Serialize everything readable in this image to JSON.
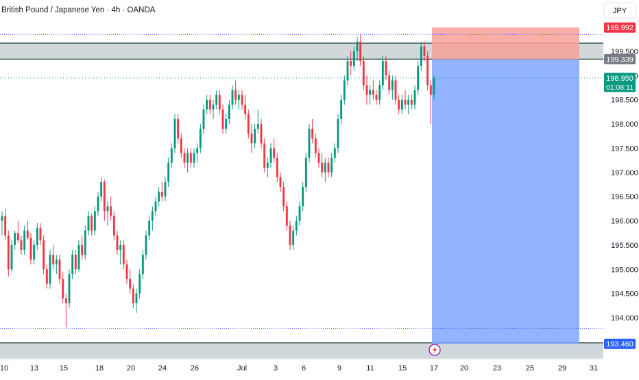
{
  "header": {
    "symbol_title": "British Pound / Japanese Yen · 4h · OANDA",
    "currency": "JPY"
  },
  "colors": {
    "up": "#089981",
    "down": "#f23645",
    "zone_fill": "#b2bec3",
    "zone_line": "#1b3d2f",
    "target_fill": "#7fa6ff",
    "stop_fill": "#f8a199",
    "dotted_line": "#3d5afe",
    "last_price_line": "#089981",
    "label_red": "#f23645",
    "label_gray": "#787b86",
    "label_green": "#089981",
    "label_blue": "#2962ff",
    "event_icon": "#9c27b0"
  },
  "chart_data": {
    "type": "candlestick",
    "symbol": "GBPJPY",
    "timeframe": "4h",
    "source": "OANDA",
    "ylim": [
      193.4,
      200.4
    ],
    "y_ticks": [
      194.0,
      194.5,
      195.0,
      195.5,
      196.0,
      196.5,
      197.0,
      197.5,
      198.0,
      198.5,
      199.0,
      199.5
    ],
    "x_tick_labels": [
      "10",
      "13",
      "15",
      "18",
      "20",
      "24",
      "26",
      "Jul",
      "3",
      "6",
      "9",
      "11",
      "15",
      "17",
      "20",
      "23",
      "25",
      "29",
      "31"
    ],
    "price_labels": [
      {
        "value": 199.992,
        "label": "199.992",
        "role": "stop-loss"
      },
      {
        "value": 199.339,
        "label": "199.339",
        "role": "entry"
      },
      {
        "value": 198.95,
        "label": "198.950",
        "role": "last-price",
        "countdown": "01:08:11"
      },
      {
        "value": 193.46,
        "label": "193.460",
        "role": "target"
      }
    ],
    "resistance_zone": [
      199.339,
      199.67
    ],
    "support_zone": [
      193.2,
      193.48
    ],
    "dotted_levels": [
      199.85,
      193.78
    ],
    "short_position": {
      "entry": 199.339,
      "stop": 199.992,
      "target": 193.46,
      "start_date": "17",
      "end_date": "31"
    },
    "candles": [
      [
        196.0,
        196.2,
        195.7,
        196.1
      ],
      [
        196.1,
        196.25,
        195.6,
        195.7
      ],
      [
        195.7,
        195.8,
        194.85,
        195.0
      ],
      [
        195.0,
        195.6,
        194.95,
        195.5
      ],
      [
        195.5,
        195.8,
        195.4,
        195.75
      ],
      [
        195.75,
        196.0,
        195.55,
        195.6
      ],
      [
        195.6,
        195.7,
        195.3,
        195.4
      ],
      [
        195.4,
        195.9,
        195.3,
        195.8
      ],
      [
        195.8,
        196.0,
        195.6,
        195.65
      ],
      [
        195.65,
        195.75,
        195.1,
        195.2
      ],
      [
        195.2,
        195.6,
        195.1,
        195.5
      ],
      [
        195.5,
        195.95,
        195.4,
        195.85
      ],
      [
        195.85,
        195.95,
        195.5,
        195.6
      ],
      [
        195.6,
        195.7,
        194.9,
        195.0
      ],
      [
        195.0,
        195.1,
        194.6,
        194.7
      ],
      [
        194.7,
        195.4,
        194.6,
        195.3
      ],
      [
        195.3,
        195.5,
        195.0,
        195.1
      ],
      [
        195.1,
        195.3,
        194.9,
        195.2
      ],
      [
        195.2,
        195.3,
        194.7,
        194.8
      ],
      [
        194.8,
        194.95,
        194.3,
        194.4
      ],
      [
        194.4,
        194.5,
        193.8,
        194.3
      ],
      [
        194.3,
        195.0,
        194.2,
        194.9
      ],
      [
        194.9,
        195.4,
        194.8,
        195.3
      ],
      [
        195.3,
        195.4,
        194.9,
        195.0
      ],
      [
        195.0,
        195.6,
        194.95,
        195.5
      ],
      [
        195.5,
        195.7,
        195.2,
        195.3
      ],
      [
        195.3,
        195.9,
        195.2,
        195.8
      ],
      [
        195.8,
        196.2,
        195.7,
        196.1
      ],
      [
        196.1,
        196.15,
        195.7,
        195.8
      ],
      [
        195.8,
        196.3,
        195.7,
        196.2
      ],
      [
        196.2,
        196.6,
        196.1,
        196.5
      ],
      [
        196.5,
        196.9,
        196.4,
        196.8
      ],
      [
        196.8,
        196.85,
        196.0,
        196.2
      ],
      [
        196.2,
        196.4,
        195.9,
        196.3
      ],
      [
        196.3,
        196.5,
        196.0,
        196.1
      ],
      [
        196.1,
        196.2,
        195.6,
        195.7
      ],
      [
        195.7,
        195.8,
        195.3,
        195.4
      ],
      [
        195.4,
        195.6,
        195.1,
        195.5
      ],
      [
        195.5,
        195.6,
        195.0,
        195.1
      ],
      [
        195.1,
        195.2,
        194.7,
        194.8
      ],
      [
        194.8,
        195.0,
        194.5,
        194.6
      ],
      [
        194.6,
        194.7,
        194.2,
        194.3
      ],
      [
        194.3,
        194.6,
        194.1,
        194.5
      ],
      [
        194.5,
        195.0,
        194.4,
        194.9
      ],
      [
        194.9,
        195.4,
        194.8,
        195.3
      ],
      [
        195.3,
        195.8,
        195.2,
        195.7
      ],
      [
        195.7,
        196.1,
        195.6,
        196.0
      ],
      [
        196.0,
        196.3,
        195.8,
        196.2
      ],
      [
        196.2,
        196.5,
        196.1,
        196.4
      ],
      [
        196.4,
        196.7,
        196.3,
        196.6
      ],
      [
        196.6,
        196.8,
        196.4,
        196.5
      ],
      [
        196.5,
        196.9,
        196.4,
        196.8
      ],
      [
        196.8,
        197.3,
        196.7,
        197.2
      ],
      [
        197.2,
        197.6,
        197.1,
        197.5
      ],
      [
        197.5,
        198.2,
        197.4,
        198.1
      ],
      [
        198.1,
        198.2,
        197.6,
        197.7
      ],
      [
        197.7,
        197.8,
        197.3,
        197.4
      ],
      [
        197.4,
        197.5,
        197.1,
        197.2
      ],
      [
        197.2,
        197.5,
        197.0,
        197.4
      ],
      [
        197.4,
        197.5,
        197.1,
        197.2
      ],
      [
        197.2,
        197.5,
        197.1,
        197.4
      ],
      [
        197.4,
        197.6,
        197.2,
        197.5
      ],
      [
        197.5,
        198.0,
        197.4,
        197.9
      ],
      [
        197.9,
        198.4,
        197.8,
        198.3
      ],
      [
        198.3,
        198.6,
        198.2,
        198.5
      ],
      [
        198.5,
        198.6,
        198.2,
        198.3
      ],
      [
        198.3,
        198.5,
        198.1,
        198.4
      ],
      [
        198.4,
        198.7,
        198.3,
        198.6
      ],
      [
        198.6,
        198.7,
        198.2,
        198.3
      ],
      [
        198.3,
        198.4,
        197.8,
        197.9
      ],
      [
        197.9,
        198.2,
        197.8,
        198.1
      ],
      [
        198.1,
        198.5,
        198.0,
        198.4
      ],
      [
        198.4,
        198.8,
        198.3,
        198.7
      ],
      [
        198.7,
        198.9,
        198.4,
        198.5
      ],
      [
        198.5,
        198.7,
        198.3,
        198.6
      ],
      [
        198.6,
        198.7,
        198.3,
        198.4
      ],
      [
        198.4,
        198.6,
        198.1,
        198.2
      ],
      [
        198.2,
        198.3,
        197.7,
        197.8
      ],
      [
        197.8,
        198.0,
        197.4,
        197.6
      ],
      [
        197.6,
        198.0,
        197.5,
        197.9
      ],
      [
        197.9,
        198.3,
        197.8,
        198.0
      ],
      [
        198.0,
        198.1,
        197.5,
        197.6
      ],
      [
        197.6,
        197.7,
        197.0,
        197.1
      ],
      [
        197.1,
        197.3,
        196.9,
        197.2
      ],
      [
        197.2,
        197.6,
        197.1,
        197.5
      ],
      [
        197.5,
        197.7,
        197.2,
        197.3
      ],
      [
        197.3,
        197.4,
        196.8,
        196.9
      ],
      [
        196.9,
        197.0,
        196.6,
        196.7
      ],
      [
        196.7,
        196.8,
        196.2,
        196.3
      ],
      [
        196.3,
        196.4,
        195.8,
        195.9
      ],
      [
        195.9,
        196.0,
        195.4,
        195.5
      ],
      [
        195.5,
        195.9,
        195.4,
        195.8
      ],
      [
        195.8,
        196.1,
        195.7,
        196.0
      ],
      [
        196.0,
        196.4,
        195.9,
        196.3
      ],
      [
        196.3,
        196.8,
        196.2,
        196.7
      ],
      [
        196.7,
        197.4,
        196.6,
        197.3
      ],
      [
        197.3,
        198.0,
        197.2,
        197.9
      ],
      [
        197.9,
        198.1,
        197.6,
        197.7
      ],
      [
        197.7,
        197.8,
        197.3,
        197.4
      ],
      [
        197.4,
        197.5,
        197.1,
        197.2
      ],
      [
        197.2,
        197.4,
        196.9,
        197.0
      ],
      [
        197.0,
        197.3,
        196.8,
        197.2
      ],
      [
        197.2,
        197.3,
        196.9,
        197.0
      ],
      [
        197.0,
        197.4,
        196.9,
        197.3
      ],
      [
        197.3,
        197.6,
        197.2,
        197.5
      ],
      [
        197.5,
        198.2,
        197.4,
        198.1
      ],
      [
        198.1,
        198.6,
        198.0,
        198.5
      ],
      [
        198.5,
        199.0,
        198.4,
        198.9
      ],
      [
        198.9,
        199.4,
        198.8,
        199.3
      ],
      [
        199.3,
        199.5,
        199.0,
        199.2
      ],
      [
        199.2,
        199.6,
        199.1,
        199.5
      ],
      [
        199.5,
        199.8,
        199.3,
        199.7
      ],
      [
        199.7,
        199.85,
        199.2,
        199.3
      ],
      [
        199.3,
        199.4,
        198.7,
        198.8
      ],
      [
        198.8,
        199.0,
        198.4,
        198.6
      ],
      [
        198.6,
        198.8,
        198.4,
        198.7
      ],
      [
        198.7,
        198.9,
        198.5,
        198.6
      ],
      [
        198.6,
        198.7,
        198.4,
        198.5
      ],
      [
        198.5,
        198.9,
        198.4,
        198.8
      ],
      [
        198.8,
        199.4,
        198.7,
        199.3
      ],
      [
        199.3,
        199.4,
        198.9,
        199.0
      ],
      [
        199.0,
        199.1,
        198.6,
        198.7
      ],
      [
        198.7,
        199.0,
        198.5,
        198.9
      ],
      [
        198.9,
        199.0,
        198.4,
        198.5
      ],
      [
        198.5,
        198.6,
        198.2,
        198.3
      ],
      [
        198.3,
        198.6,
        198.2,
        198.5
      ],
      [
        198.5,
        198.7,
        198.3,
        198.4
      ],
      [
        198.4,
        198.6,
        198.2,
        198.5
      ],
      [
        198.5,
        198.6,
        198.3,
        198.4
      ],
      [
        198.4,
        198.8,
        198.3,
        198.7
      ],
      [
        198.7,
        199.3,
        198.6,
        199.2
      ],
      [
        199.2,
        199.7,
        199.1,
        199.6
      ],
      [
        199.6,
        199.7,
        199.3,
        199.4
      ],
      [
        199.4,
        199.5,
        198.7,
        198.8
      ],
      [
        198.8,
        198.9,
        198.0,
        198.6
      ],
      [
        198.6,
        199.0,
        198.5,
        198.95
      ]
    ]
  }
}
